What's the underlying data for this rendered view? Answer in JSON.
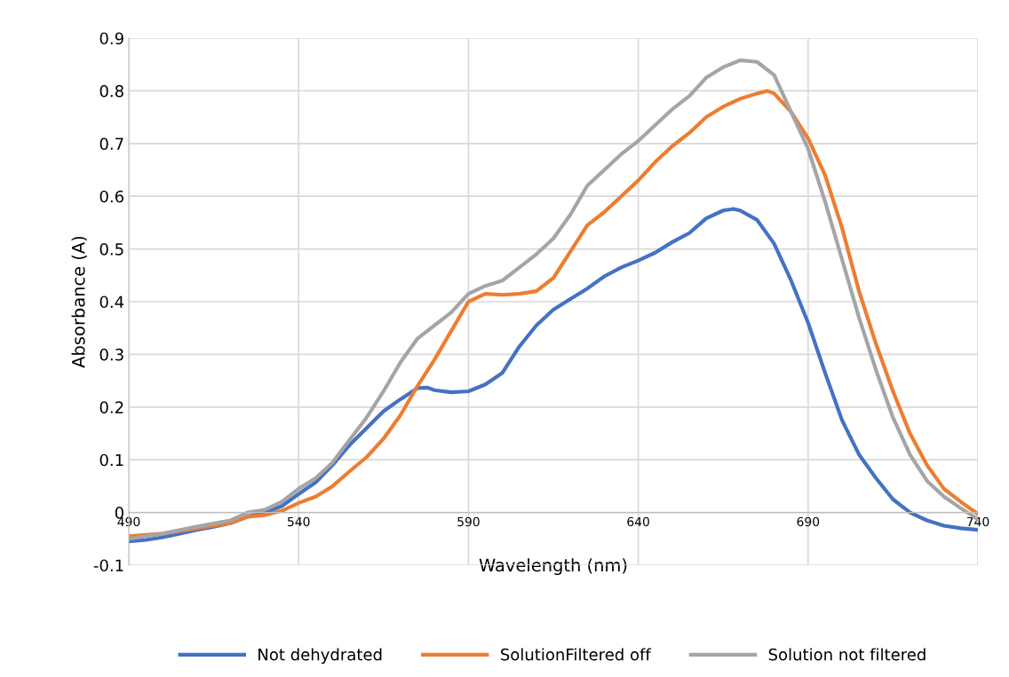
{
  "chart_data": {
    "type": "line",
    "xlabel": "Wavelength (nm)",
    "ylabel": "Absorbance (A)",
    "xlim": [
      490,
      740
    ],
    "xticks": [
      490,
      540,
      590,
      640,
      690,
      740
    ],
    "ylim": [
      -0.1,
      0.9
    ],
    "yticks": [
      -0.1,
      0,
      0.1,
      0.2,
      0.3,
      0.4,
      0.5,
      0.6,
      0.7,
      0.8,
      0.9
    ],
    "grid": true,
    "legend": "bottom",
    "marker": "none",
    "line_style": "solid",
    "series": [
      {
        "name": "Not dehydrated",
        "color": "#4472c4",
        "x": [
          490,
          495,
          500,
          505,
          510,
          515,
          520,
          525,
          530,
          535,
          540,
          545,
          550,
          555,
          560,
          565,
          570,
          575,
          578,
          580,
          585,
          590,
          595,
          600,
          605,
          610,
          615,
          620,
          625,
          630,
          635,
          640,
          645,
          650,
          655,
          660,
          665,
          668,
          670,
          675,
          680,
          685,
          690,
          695,
          700,
          705,
          710,
          715,
          720,
          725,
          730,
          735,
          740
        ],
        "values": [
          -0.055,
          -0.052,
          -0.047,
          -0.04,
          -0.033,
          -0.027,
          -0.02,
          -0.008,
          0.0,
          0.012,
          0.035,
          0.057,
          0.09,
          0.128,
          0.16,
          0.192,
          0.215,
          0.236,
          0.237,
          0.232,
          0.228,
          0.23,
          0.243,
          0.265,
          0.315,
          0.355,
          0.385,
          0.405,
          0.425,
          0.448,
          0.465,
          0.478,
          0.493,
          0.513,
          0.53,
          0.558,
          0.573,
          0.576,
          0.573,
          0.555,
          0.51,
          0.44,
          0.36,
          0.265,
          0.175,
          0.11,
          0.065,
          0.025,
          0.0,
          -0.015,
          -0.025,
          -0.03,
          -0.033
        ]
      },
      {
        "name": "SolutionFiltered off",
        "color": "#ed7d31",
        "x": [
          490,
          500,
          510,
          520,
          525,
          530,
          535,
          540,
          545,
          550,
          555,
          560,
          565,
          570,
          575,
          580,
          585,
          590,
          595,
          600,
          605,
          610,
          615,
          620,
          625,
          630,
          635,
          640,
          645,
          650,
          655,
          660,
          665,
          670,
          675,
          678,
          680,
          685,
          690,
          695,
          700,
          705,
          710,
          715,
          720,
          725,
          730,
          735,
          740
        ],
        "values": [
          -0.045,
          -0.04,
          -0.03,
          -0.02,
          -0.008,
          -0.005,
          0.003,
          0.018,
          0.03,
          0.05,
          0.078,
          0.105,
          0.14,
          0.185,
          0.24,
          0.29,
          0.345,
          0.4,
          0.415,
          0.413,
          0.415,
          0.42,
          0.445,
          0.495,
          0.545,
          0.57,
          0.6,
          0.63,
          0.665,
          0.695,
          0.72,
          0.75,
          0.77,
          0.785,
          0.795,
          0.8,
          0.795,
          0.76,
          0.71,
          0.64,
          0.54,
          0.42,
          0.32,
          0.23,
          0.15,
          0.09,
          0.045,
          0.02,
          -0.003
        ]
      },
      {
        "name": "Solution not filtered",
        "color": "#a5a5a5",
        "x": [
          490,
          500,
          510,
          520,
          525,
          530,
          535,
          540,
          545,
          550,
          555,
          560,
          565,
          570,
          575,
          580,
          585,
          590,
          595,
          600,
          605,
          610,
          615,
          620,
          625,
          630,
          635,
          640,
          645,
          650,
          655,
          660,
          665,
          670,
          675,
          680,
          685,
          690,
          695,
          700,
          705,
          710,
          715,
          720,
          725,
          730,
          735,
          740
        ],
        "values": [
          -0.05,
          -0.04,
          -0.027,
          -0.015,
          0.0,
          0.005,
          0.02,
          0.045,
          0.065,
          0.095,
          0.138,
          0.18,
          0.23,
          0.285,
          0.33,
          0.355,
          0.38,
          0.415,
          0.43,
          0.44,
          0.465,
          0.49,
          0.52,
          0.565,
          0.62,
          0.65,
          0.68,
          0.705,
          0.735,
          0.765,
          0.79,
          0.825,
          0.845,
          0.858,
          0.855,
          0.83,
          0.76,
          0.69,
          0.59,
          0.48,
          0.37,
          0.27,
          0.18,
          0.11,
          0.06,
          0.03,
          0.008,
          -0.013
        ]
      }
    ]
  }
}
